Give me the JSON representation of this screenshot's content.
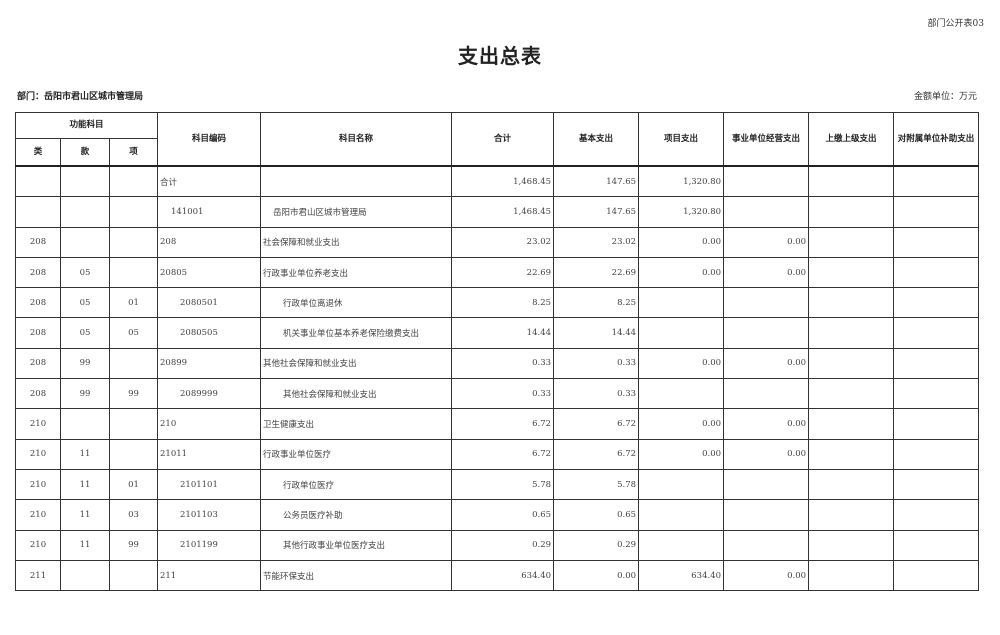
{
  "form_number": "部门公开表03",
  "title": "支出总表",
  "department": "部门：岳阳市君山区城市管理局",
  "unit": "金额单位：万元",
  "headers": {
    "function_subject": "功能科目",
    "lei": "类",
    "kuan": "款",
    "xiang": "项",
    "code": "科目编码",
    "name": "科目名称",
    "total": "合计",
    "basic": "基本支出",
    "project": "项目支出",
    "business": "事业单位经营支出",
    "upper": "上缴上级支出",
    "subsidy": "对附属单位补助支出"
  },
  "rows": [
    {
      "lei": "",
      "kuan": "",
      "xiang": "",
      "code": "合计",
      "name": "",
      "total": "1,468.45",
      "basic": "147.65",
      "project": "1,320.80",
      "business": "",
      "upper": "",
      "subsidy": "",
      "level": 0
    },
    {
      "lei": "",
      "kuan": "",
      "xiang": "",
      "code": "141001",
      "name": "岳阳市君山区城市管理局",
      "total": "1,468.45",
      "basic": "147.65",
      "project": "1,320.80",
      "business": "",
      "upper": "",
      "subsidy": "",
      "level": 1
    },
    {
      "lei": "208",
      "kuan": "",
      "xiang": "",
      "code": "208",
      "name": "社会保障和就业支出",
      "total": "23.02",
      "basic": "23.02",
      "project": "0.00",
      "business": "0.00",
      "upper": "",
      "subsidy": "",
      "level": 0
    },
    {
      "lei": "208",
      "kuan": "05",
      "xiang": "",
      "code": "20805",
      "name": "行政事业单位养老支出",
      "total": "22.69",
      "basic": "22.69",
      "project": "0.00",
      "business": "0.00",
      "upper": "",
      "subsidy": "",
      "level": 0
    },
    {
      "lei": "208",
      "kuan": "05",
      "xiang": "01",
      "code": "2080501",
      "name": "行政单位离退休",
      "total": "8.25",
      "basic": "8.25",
      "project": "",
      "business": "",
      "upper": "",
      "subsidy": "",
      "level": 2
    },
    {
      "lei": "208",
      "kuan": "05",
      "xiang": "05",
      "code": "2080505",
      "name": "机关事业单位基本养老保险缴费支出",
      "total": "14.44",
      "basic": "14.44",
      "project": "",
      "business": "",
      "upper": "",
      "subsidy": "",
      "level": 2
    },
    {
      "lei": "208",
      "kuan": "99",
      "xiang": "",
      "code": "20899",
      "name": "其他社会保障和就业支出",
      "total": "0.33",
      "basic": "0.33",
      "project": "0.00",
      "business": "0.00",
      "upper": "",
      "subsidy": "",
      "level": 0
    },
    {
      "lei": "208",
      "kuan": "99",
      "xiang": "99",
      "code": "2089999",
      "name": "其他社会保障和就业支出",
      "total": "0.33",
      "basic": "0.33",
      "project": "",
      "business": "",
      "upper": "",
      "subsidy": "",
      "level": 2
    },
    {
      "lei": "210",
      "kuan": "",
      "xiang": "",
      "code": "210",
      "name": "卫生健康支出",
      "total": "6.72",
      "basic": "6.72",
      "project": "0.00",
      "business": "0.00",
      "upper": "",
      "subsidy": "",
      "level": 0
    },
    {
      "lei": "210",
      "kuan": "11",
      "xiang": "",
      "code": "21011",
      "name": "行政事业单位医疗",
      "total": "6.72",
      "basic": "6.72",
      "project": "0.00",
      "business": "0.00",
      "upper": "",
      "subsidy": "",
      "level": 0
    },
    {
      "lei": "210",
      "kuan": "11",
      "xiang": "01",
      "code": "2101101",
      "name": "行政单位医疗",
      "total": "5.78",
      "basic": "5.78",
      "project": "",
      "business": "",
      "upper": "",
      "subsidy": "",
      "level": 2
    },
    {
      "lei": "210",
      "kuan": "11",
      "xiang": "03",
      "code": "2101103",
      "name": "公务员医疗补助",
      "total": "0.65",
      "basic": "0.65",
      "project": "",
      "business": "",
      "upper": "",
      "subsidy": "",
      "level": 2
    },
    {
      "lei": "210",
      "kuan": "11",
      "xiang": "99",
      "code": "2101199",
      "name": "其他行政事业单位医疗支出",
      "total": "0.29",
      "basic": "0.29",
      "project": "",
      "business": "",
      "upper": "",
      "subsidy": "",
      "level": 2
    },
    {
      "lei": "211",
      "kuan": "",
      "xiang": "",
      "code": "211",
      "name": "节能环保支出",
      "total": "634.40",
      "basic": "0.00",
      "project": "634.40",
      "business": "0.00",
      "upper": "",
      "subsidy": "",
      "level": 0
    }
  ]
}
